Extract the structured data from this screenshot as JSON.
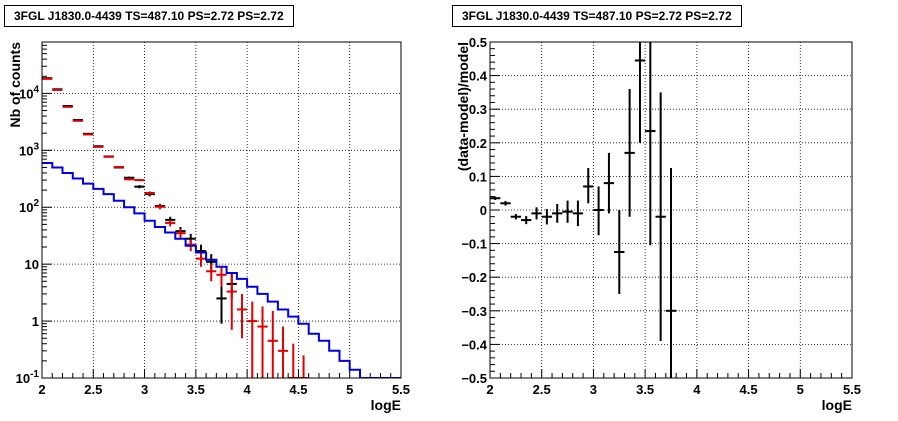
{
  "chart_data": [
    {
      "type": "scatter",
      "title": "3FGL J1830.0-4439 TS=487.10 PS=2.72 PS=2.72",
      "xlabel": "logE",
      "ylabel": "Nb of counts",
      "xlim": [
        2,
        5.5
      ],
      "ylim": [
        0.1,
        80000
      ],
      "yscale": "log",
      "grid": true,
      "x_ticks": [
        "2",
        "2.5",
        "3",
        "3.5",
        "4",
        "4.5",
        "5",
        "5.5"
      ],
      "y_ticks": [
        {
          "value": 0.1,
          "label": "10",
          "exp": "-1"
        },
        {
          "value": 1,
          "label": "1",
          "exp": ""
        },
        {
          "value": 10,
          "label": "10",
          "exp": ""
        },
        {
          "value": 100,
          "label": "10",
          "exp": "2"
        },
        {
          "value": 1000,
          "label": "10",
          "exp": "3"
        },
        {
          "value": 10000,
          "label": "10",
          "exp": "4"
        }
      ],
      "bin_edges": [
        2.0,
        2.1,
        2.2,
        2.3,
        2.4,
        2.5,
        2.6,
        2.7,
        2.8,
        2.9,
        3.0,
        3.1,
        3.2,
        3.3,
        3.4,
        3.5,
        3.6,
        3.7,
        3.8,
        3.9,
        4.0,
        4.1,
        4.2,
        4.3,
        4.4,
        4.5,
        4.6,
        4.7,
        4.8,
        4.9,
        5.0,
        5.1,
        5.2,
        5.3,
        5.4,
        5.5
      ],
      "series": [
        {
          "color": "#000000",
          "style": "errorbar",
          "points": [
            {
              "x": 2.05,
              "y": 18500,
              "lo": 18400,
              "hi": 18600
            },
            {
              "x": 2.15,
              "y": 11800,
              "lo": 11700,
              "hi": 11900
            },
            {
              "x": 2.25,
              "y": 6000,
              "lo": 5950,
              "hi": 6050
            },
            {
              "x": 2.35,
              "y": 3400,
              "lo": 3350,
              "hi": 3450
            },
            {
              "x": 2.45,
              "y": 1950,
              "lo": 1920,
              "hi": 1980
            },
            {
              "x": 2.55,
              "y": 1180,
              "lo": 1150,
              "hi": 1210
            },
            {
              "x": 2.65,
              "y": 780,
              "lo": 760,
              "hi": 800
            },
            {
              "x": 2.75,
              "y": 500,
              "lo": 480,
              "hi": 520
            },
            {
              "x": 2.85,
              "y": 330,
              "lo": 315,
              "hi": 345
            },
            {
              "x": 2.95,
              "y": 230,
              "lo": 215,
              "hi": 245
            },
            {
              "x": 3.05,
              "y": 170,
              "lo": 155,
              "hi": 185
            },
            {
              "x": 3.15,
              "y": 105,
              "lo": 95,
              "hi": 115
            },
            {
              "x": 3.25,
              "y": 60,
              "lo": 52,
              "hi": 68
            },
            {
              "x": 3.35,
              "y": 38,
              "lo": 32,
              "hi": 45
            },
            {
              "x": 3.45,
              "y": 28,
              "lo": 23,
              "hi": 34
            },
            {
              "x": 3.55,
              "y": 17,
              "lo": 13,
              "hi": 22
            },
            {
              "x": 3.65,
              "y": 11,
              "lo": 8,
              "hi": 15
            },
            {
              "x": 3.75,
              "y": 2.5,
              "lo": 0.9,
              "hi": 5
            },
            {
              "x": 3.85,
              "y": 4.5,
              "lo": 2.5,
              "hi": 7
            }
          ]
        },
        {
          "color": "#e00000",
          "style": "errorbar",
          "points": [
            {
              "x": 2.05,
              "y": 18000,
              "lo": 17900,
              "hi": 18100
            },
            {
              "x": 2.15,
              "y": 11500,
              "lo": 11400,
              "hi": 11600
            },
            {
              "x": 2.25,
              "y": 5800,
              "lo": 5750,
              "hi": 5850
            },
            {
              "x": 2.35,
              "y": 3300,
              "lo": 3250,
              "hi": 3350
            },
            {
              "x": 2.45,
              "y": 1900,
              "lo": 1870,
              "hi": 1930
            },
            {
              "x": 2.55,
              "y": 1150,
              "lo": 1120,
              "hi": 1180
            },
            {
              "x": 2.65,
              "y": 770,
              "lo": 750,
              "hi": 790
            },
            {
              "x": 2.75,
              "y": 510,
              "lo": 490,
              "hi": 530
            },
            {
              "x": 2.85,
              "y": 310,
              "lo": 295,
              "hi": 325
            },
            {
              "x": 2.95,
              "y": 300,
              "lo": 285,
              "hi": 315
            },
            {
              "x": 3.05,
              "y": 178,
              "lo": 165,
              "hi": 190
            },
            {
              "x": 3.15,
              "y": 102,
              "lo": 92,
              "hi": 112
            },
            {
              "x": 3.25,
              "y": 53,
              "lo": 46,
              "hi": 60
            },
            {
              "x": 3.35,
              "y": 35,
              "lo": 29,
              "hi": 41
            },
            {
              "x": 3.45,
              "y": 22,
              "lo": 17,
              "hi": 27
            },
            {
              "x": 3.55,
              "y": 12.5,
              "lo": 9,
              "hi": 16
            },
            {
              "x": 3.65,
              "y": 7.5,
              "lo": 5,
              "hi": 10
            },
            {
              "x": 3.75,
              "y": 6.5,
              "lo": 4,
              "hi": 9
            },
            {
              "x": 3.85,
              "y": 3.3,
              "lo": 0.7,
              "hi": 6.5
            },
            {
              "x": 3.95,
              "y": 1.6,
              "lo": 0.5,
              "hi": 3.0
            },
            {
              "x": 4.05,
              "y": 1.0,
              "lo": 0.1,
              "hi": 2.2
            },
            {
              "x": 4.15,
              "y": 0.8,
              "lo": 0.1,
              "hi": 1.8
            },
            {
              "x": 4.25,
              "y": 0.45,
              "lo": 0.1,
              "hi": 1.5
            },
            {
              "x": 4.35,
              "y": 0.3,
              "lo": 0.1,
              "hi": 0.8
            },
            {
              "x": 4.45,
              "y": 0.1,
              "lo": 0.1,
              "hi": 0.4
            },
            {
              "x": 4.55,
              "y": 0.1,
              "lo": 0.1,
              "hi": 0.25
            }
          ]
        },
        {
          "color": "#0000e0",
          "style": "step",
          "values": [
            600,
            500,
            400,
            320,
            260,
            210,
            170,
            130,
            100,
            78,
            58,
            45,
            36,
            28,
            21,
            16,
            12,
            9,
            7,
            5.5,
            4,
            3,
            2.2,
            1.6,
            1.2,
            0.9,
            0.6,
            0.45,
            0.3,
            0.2,
            0.14,
            0.1,
            0.1,
            0.1,
            0.1
          ]
        }
      ]
    },
    {
      "type": "scatter",
      "title": "3FGL J1830.0-4439 TS=487.10 PS=2.72 PS=2.72",
      "xlabel": "logE",
      "ylabel": "(data-model)/model",
      "xlim": [
        2,
        5.5
      ],
      "ylim": [
        -0.5,
        0.5
      ],
      "grid": true,
      "x_ticks": [
        "2",
        "2.5",
        "3",
        "3.5",
        "4",
        "4.5",
        "5",
        "5.5"
      ],
      "y_ticks": [
        {
          "value": -0.5,
          "label": "−0.5"
        },
        {
          "value": -0.4,
          "label": "−0.4"
        },
        {
          "value": -0.3,
          "label": "−0.3"
        },
        {
          "value": -0.2,
          "label": "−0.2"
        },
        {
          "value": -0.1,
          "label": "−0.1"
        },
        {
          "value": 0,
          "label": "0"
        },
        {
          "value": 0.1,
          "label": "0.1"
        },
        {
          "value": 0.2,
          "label": "0.2"
        },
        {
          "value": 0.3,
          "label": "0.3"
        },
        {
          "value": 0.4,
          "label": "0.4"
        },
        {
          "value": 0.5,
          "label": "0.5"
        }
      ],
      "series": [
        {
          "color": "#000000",
          "style": "errorbar",
          "points": [
            {
              "x": 2.05,
              "y": 0.035,
              "lo": 0.03,
              "hi": 0.04
            },
            {
              "x": 2.15,
              "y": 0.02,
              "lo": 0.013,
              "hi": 0.027
            },
            {
              "x": 2.25,
              "y": -0.02,
              "lo": -0.028,
              "hi": -0.012
            },
            {
              "x": 2.35,
              "y": -0.03,
              "lo": -0.042,
              "hi": -0.018
            },
            {
              "x": 2.45,
              "y": -0.01,
              "lo": -0.028,
              "hi": 0.008
            },
            {
              "x": 2.55,
              "y": -0.02,
              "lo": -0.043,
              "hi": 0.003
            },
            {
              "x": 2.65,
              "y": -0.01,
              "lo": -0.038,
              "hi": 0.018
            },
            {
              "x": 2.75,
              "y": -0.005,
              "lo": -0.038,
              "hi": 0.028
            },
            {
              "x": 2.85,
              "y": -0.01,
              "lo": -0.048,
              "hi": 0.028
            },
            {
              "x": 2.95,
              "y": 0.07,
              "lo": 0.02,
              "hi": 0.125
            },
            {
              "x": 3.05,
              "y": 0.0,
              "lo": -0.075,
              "hi": 0.07
            },
            {
              "x": 3.15,
              "y": 0.08,
              "lo": -0.01,
              "hi": 0.17
            },
            {
              "x": 3.25,
              "y": -0.125,
              "lo": -0.25,
              "hi": 0.0
            },
            {
              "x": 3.35,
              "y": 0.17,
              "lo": -0.02,
              "hi": 0.36
            },
            {
              "x": 3.45,
              "y": 0.445,
              "lo": 0.2,
              "hi": 0.5
            },
            {
              "x": 3.55,
              "y": 0.235,
              "lo": -0.105,
              "hi": 0.5
            },
            {
              "x": 3.65,
              "y": -0.02,
              "lo": -0.39,
              "hi": 0.35
            },
            {
              "x": 3.75,
              "y": -0.3,
              "lo": -0.5,
              "hi": 0.125
            }
          ]
        }
      ]
    }
  ]
}
